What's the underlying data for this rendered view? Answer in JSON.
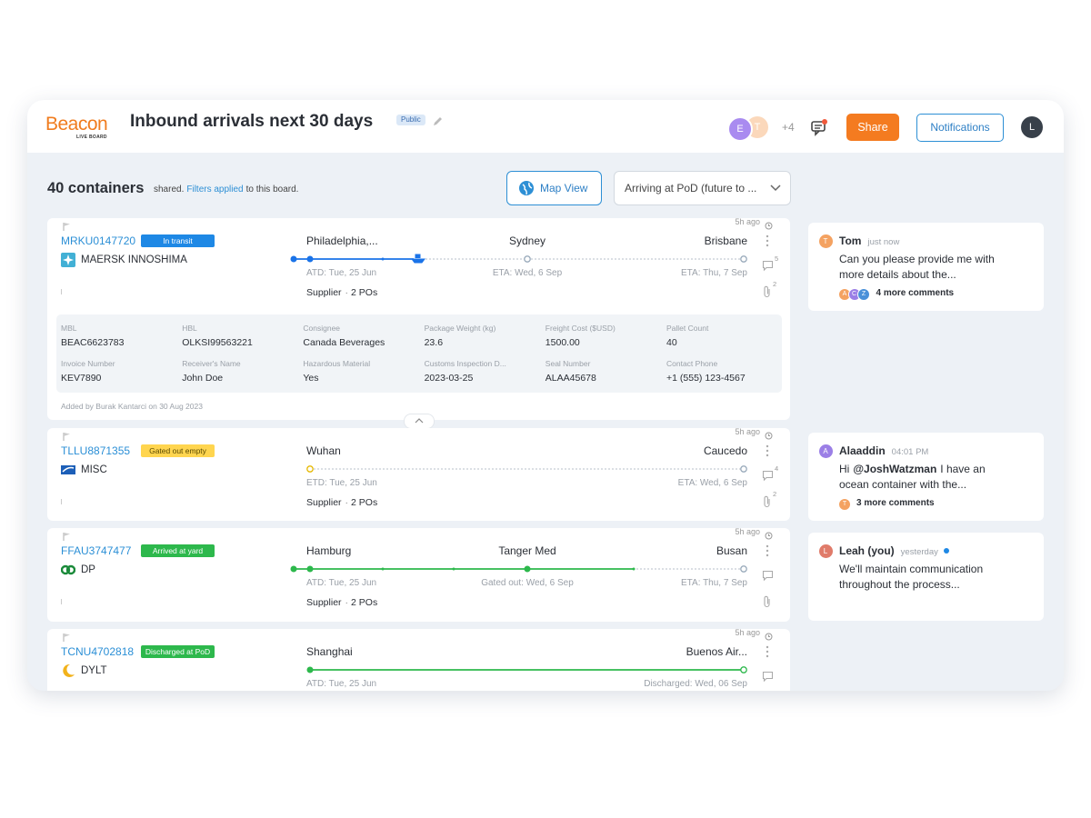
{
  "header": {
    "logo": "Beacon",
    "logo_sub": "LIVE BOARD",
    "title": "Inbound arrivals next 30 days",
    "visibility": "Public",
    "avatars": [
      "E",
      "T"
    ],
    "more_members": "+4",
    "share": "Share",
    "notifications": "Notifications",
    "user": "L"
  },
  "toolbar": {
    "count": "40 containers",
    "text_before": "shared.",
    "filters_link": "Filters applied",
    "text_after": "to this board.",
    "map_view": "Map View",
    "filter": "Arriving at PoD (future to ..."
  },
  "containers": [
    {
      "updated": "5h ago",
      "id": "MRKU0147720",
      "status": "In transit",
      "carrier": "MAERSK INNOSHIMA",
      "origin": "Philadelphia,...",
      "midpoint": "Sydney",
      "destination": "Brisbane",
      "origin_date": "ATD: Tue, 25 Jun",
      "midpoint_date": "ETA: Wed, 6 Sep",
      "destination_date": "ETA: Thu, 7 Sep",
      "supplier": "Supplier",
      "pos": "2 POs",
      "comments": "5",
      "attachments": "2",
      "details": [
        {
          "label": "MBL",
          "value": "BEAC6623783"
        },
        {
          "label": "HBL",
          "value": "OLKSI99563221"
        },
        {
          "label": "Consignee",
          "value": "Canada Beverages"
        },
        {
          "label": "Package Weight (kg)",
          "value": "23.6"
        },
        {
          "label": "Freight Cost ($USD)",
          "value": "1500.00"
        },
        {
          "label": "Pallet Count",
          "value": "40"
        },
        {
          "label": "Invoice Number",
          "value": "KEV7890"
        },
        {
          "label": "Receiver's Name",
          "value": "John Doe"
        },
        {
          "label": "Hazardous Material",
          "value": "Yes"
        },
        {
          "label": "Customs Inspection D...",
          "value": "2023-03-25"
        },
        {
          "label": "Seal Number",
          "value": "ALAA45678"
        },
        {
          "label": "Contact Phone",
          "value": "+1 (555) 123-4567"
        }
      ],
      "added_by": "Added by Burak Kantarci on 30 Aug 2023"
    },
    {
      "updated": "5h ago",
      "id": "TLLU8871355",
      "status": "Gated out empty",
      "carrier": "MISC",
      "origin": "Wuhan",
      "destination": "Caucedo",
      "origin_date": "ETD: Tue, 25 Jun",
      "destination_date": "ETA: Wed, 6 Sep",
      "supplier": "Supplier",
      "pos": "2 POs",
      "comments": "4",
      "attachments": "2"
    },
    {
      "updated": "5h ago",
      "id": "FFAU3747477",
      "status": "Arrived at yard",
      "carrier": "DP",
      "origin": "Hamburg",
      "midpoint": "Tanger Med",
      "destination": "Busan",
      "origin_date": "ATD: Tue, 25 Jun",
      "midpoint_date": "Gated out: Wed, 6 Sep",
      "destination_date": "ETA: Thu, 7 Sep",
      "supplier": "Supplier",
      "pos": "2 POs"
    },
    {
      "updated": "5h ago",
      "id": "TCNU4702818",
      "status": "Discharged at PoD",
      "carrier": "DYLT",
      "origin": "Shanghai",
      "destination": "Buenos Air...",
      "origin_date": "ATD: Tue, 25 Jun",
      "destination_date": "Discharged: Wed, 06 Sep"
    }
  ],
  "comments": [
    {
      "initial": "T",
      "author": "Tom",
      "time": "just now",
      "text": "Can you please provide me with more details about the...",
      "reply_avatars": [
        "A",
        "C",
        "Z"
      ],
      "more": "4 more comments"
    },
    {
      "initial": "A",
      "author": "Alaaddin",
      "time": "04:01 PM",
      "text_prefix": "Hi",
      "mention": "@JoshWatzman",
      "text": "I have an ocean container with the...",
      "reply_avatars": [
        "T"
      ],
      "more": "3 more comments"
    },
    {
      "initial": "L",
      "author": "Leah (you)",
      "time": "yesterday",
      "text": "We'll maintain communication throughout the process..."
    }
  ]
}
